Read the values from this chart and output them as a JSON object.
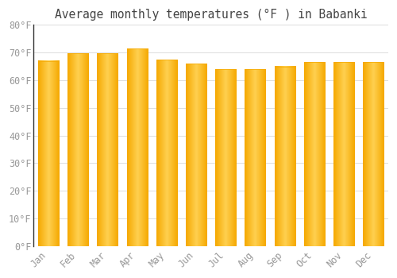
{
  "title": "Average monthly temperatures (°F ) in Babanki",
  "months": [
    "Jan",
    "Feb",
    "Mar",
    "Apr",
    "May",
    "Jun",
    "Jul",
    "Aug",
    "Sep",
    "Oct",
    "Nov",
    "Dec"
  ],
  "values": [
    67.0,
    69.8,
    69.8,
    71.5,
    67.5,
    66.0,
    64.0,
    64.0,
    65.0,
    66.5,
    66.5,
    66.5
  ],
  "bar_color_edge": "#F5A800",
  "bar_color_center": "#FFD050",
  "background_color": "#FFFFFF",
  "grid_color": "#DDDDDD",
  "ylim": [
    0,
    80
  ],
  "yticks": [
    0,
    10,
    20,
    30,
    40,
    50,
    60,
    70,
    80
  ],
  "title_fontsize": 10.5,
  "tick_fontsize": 8.5,
  "tick_color": "#999999",
  "title_color": "#444444",
  "bar_width": 0.7
}
